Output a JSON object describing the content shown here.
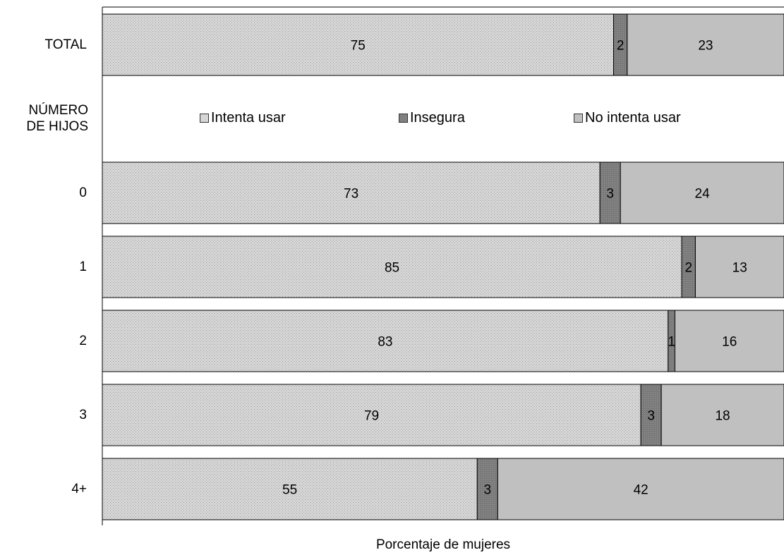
{
  "chart_data": {
    "type": "bar",
    "orientation": "horizontal",
    "stacked": true,
    "categories": [
      "TOTAL",
      "0",
      "1",
      "2",
      "3",
      "4+"
    ],
    "group_label_lines": [
      "NÚMERO",
      "DE HIJOS"
    ],
    "series": [
      {
        "name": "Intenta usar",
        "values": [
          75,
          73,
          85,
          83,
          79,
          55
        ],
        "color": "#dcdcdc"
      },
      {
        "name": "Insegura",
        "values": [
          2,
          3,
          2,
          1,
          3,
          3
        ],
        "color": "#808080"
      },
      {
        "name": "No intenta usar",
        "values": [
          23,
          24,
          13,
          16,
          18,
          42
        ],
        "color": "#c0c0c0"
      }
    ],
    "title": "",
    "xlabel": "Porcentaje de mujeres",
    "ylabel": "",
    "xlim": [
      0,
      100
    ],
    "legend_position": "inside, above the first group",
    "grid": false
  }
}
